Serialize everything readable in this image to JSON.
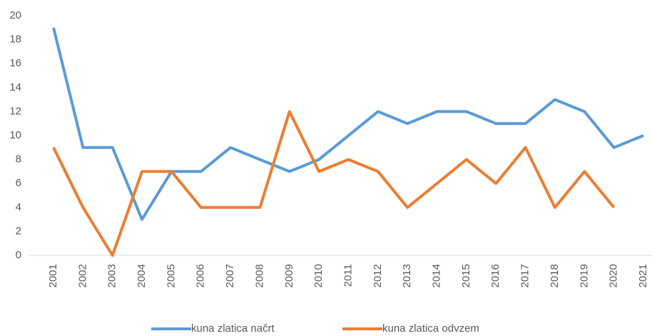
{
  "chart_data": {
    "type": "line",
    "categories": [
      "2001",
      "2002",
      "2003",
      "2004",
      "2005",
      "2006",
      "2007",
      "2008",
      "2009",
      "2010",
      "2011",
      "2012",
      "2013",
      "2014",
      "2015",
      "2016",
      "2017",
      "2018",
      "2019",
      "2020",
      "2021"
    ],
    "series": [
      {
        "name": "kuna zlatica načrt",
        "color": "#5b9bd5",
        "values": [
          19,
          9,
          9,
          3,
          7,
          7,
          9,
          8,
          7,
          8,
          10,
          12,
          11,
          12,
          12,
          11,
          11,
          13,
          12,
          9,
          10
        ]
      },
      {
        "name": "kuna zlatica odvzem",
        "color": "#ed7d31",
        "values": [
          9,
          4,
          0,
          7,
          7,
          4,
          4,
          4,
          12,
          7,
          8,
          7,
          4,
          6,
          8,
          6,
          9,
          4,
          7,
          4,
          null
        ]
      }
    ],
    "ylim": [
      0,
      20
    ],
    "yticks": [
      0,
      2,
      4,
      6,
      8,
      10,
      12,
      14,
      16,
      18,
      20
    ],
    "grid": false,
    "legend": "bottom"
  }
}
